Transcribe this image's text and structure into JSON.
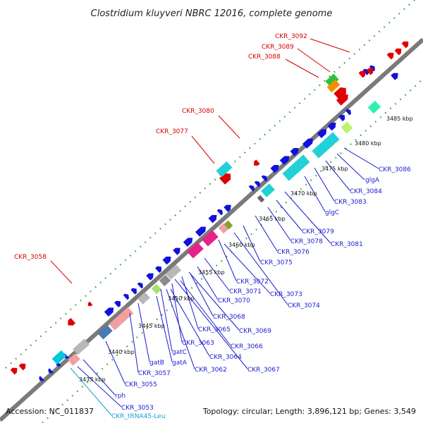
{
  "title": "Clostridium kluyveri NBRC 12016, complete genome",
  "footer": {
    "accession": "Accession: NC_011837",
    "topology": "Topology: circular; Length: 3,896,121 bp; Genes: 3,549"
  },
  "scale_ticks": [
    "3435 kbp",
    "3440 kbp",
    "3445 kbp",
    "3450 kbp",
    "3455 kbp",
    "3460 kbp",
    "3465 kbp",
    "3470 kbp",
    "3475 kbp",
    "3480 kbp",
    "3485 kbp"
  ],
  "upper_labels": [
    "CKR_3092",
    "CKR_3089",
    "CKR_3088",
    "CKR_3080",
    "CKR_3077",
    "CKR_3058"
  ],
  "lower_labels": [
    "CKR_3086",
    "glgA",
    "CKR_3084",
    "CKR_3083",
    "glgC",
    "CKR_3081",
    "CKR_3079",
    "CKR_3078",
    "CKR_3076",
    "CKR_3075",
    "CKR_3072",
    "CKR_3073",
    "CKR_3074",
    "CKR_3071",
    "CKR_3070",
    "CKR_3068",
    "CKR_3069",
    "CKR_3065",
    "CKR_3066",
    "CKR_3063",
    "CKR_3064",
    "CKR_3067",
    "gatC",
    "CKR_3062",
    "gatA",
    "gatB",
    "CKR_3057",
    "CKR_3055",
    "rph",
    "CKR_3053",
    "CKR_tRNA45-Leu"
  ],
  "colors": {
    "cds": "#1010e0",
    "rrna": "#e00000",
    "trna": "#00c8d8",
    "cyan": "#22d0d8",
    "pink": "#e8208a",
    "salmon": "#f0a0a0",
    "gray": "#b8b8b8",
    "green": "#30c040",
    "orange": "#f09000",
    "olive": "#8aa030",
    "axis": "#808080",
    "dots": "#2a9a2a",
    "label_red": "#d40000",
    "label_blue": "#1a1ad0"
  }
}
